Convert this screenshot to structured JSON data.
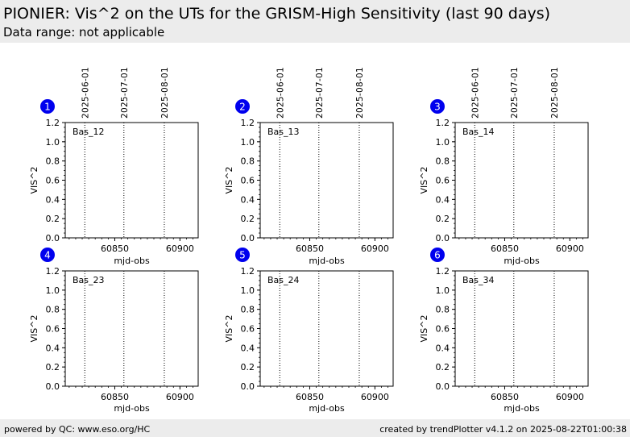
{
  "header": {
    "title": "PIONIER: Vis^2 on the UTs for the GRISM-High Sensitivity (last 90 days)",
    "subtitle": "Data range: not applicable"
  },
  "footer": {
    "left": "powered by QC: www.eso.org/HC",
    "right": "created by trendPlotter v4.1.2 on 2025-08-22T01:00:38"
  },
  "chart_data": [
    {
      "type": "scatter",
      "panel_number": "1",
      "label": "Bas_12",
      "xlabel": "",
      "ylabel": "VIS^2",
      "xlim": [
        60812,
        60914
      ],
      "ylim": [
        0,
        1.2
      ],
      "xticks": [
        60850,
        60900
      ],
      "yticks": [
        "0.0",
        "0.2",
        "0.4",
        "0.6",
        "0.8",
        "1.0",
        "1.2"
      ],
      "date_markers": [
        {
          "mjd": 60827,
          "label": "2025-06-01"
        },
        {
          "mjd": 60857,
          "label": "2025-07-01"
        },
        {
          "mjd": 60888,
          "label": "2025-08-01"
        }
      ],
      "series": []
    },
    {
      "type": "scatter",
      "panel_number": "2",
      "label": "Bas_13",
      "xlabel": "",
      "ylabel": "VIS^2",
      "xlim": [
        60812,
        60914
      ],
      "ylim": [
        0,
        1.2
      ],
      "xticks": [
        60850,
        60900
      ],
      "yticks": [
        "0.0",
        "0.2",
        "0.4",
        "0.6",
        "0.8",
        "1.0",
        "1.2"
      ],
      "date_markers": [
        {
          "mjd": 60827,
          "label": "2025-06-01"
        },
        {
          "mjd": 60857,
          "label": "2025-07-01"
        },
        {
          "mjd": 60888,
          "label": "2025-08-01"
        }
      ],
      "series": []
    },
    {
      "type": "scatter",
      "panel_number": "3",
      "label": "Bas_14",
      "xlabel": "",
      "ylabel": "VIS^2",
      "xlim": [
        60812,
        60914
      ],
      "ylim": [
        0,
        1.2
      ],
      "xticks": [
        60850,
        60900
      ],
      "yticks": [
        "0.0",
        "0.2",
        "0.4",
        "0.6",
        "0.8",
        "1.0",
        "1.2"
      ],
      "date_markers": [
        {
          "mjd": 60827,
          "label": "2025-06-01"
        },
        {
          "mjd": 60857,
          "label": "2025-07-01"
        },
        {
          "mjd": 60888,
          "label": "2025-08-01"
        }
      ],
      "series": []
    },
    {
      "type": "scatter",
      "panel_number": "4",
      "label": "Bas_23",
      "xlabel": "mjd-obs",
      "ylabel": "VIS^2",
      "xlim": [
        60812,
        60914
      ],
      "ylim": [
        0,
        1.2
      ],
      "xticks": [
        60850,
        60900
      ],
      "yticks": [
        "0.0",
        "0.2",
        "0.4",
        "0.6",
        "0.8",
        "1.0",
        "1.2"
      ],
      "date_markers": [
        {
          "mjd": 60827,
          "label": ""
        },
        {
          "mjd": 60857,
          "label": ""
        },
        {
          "mjd": 60888,
          "label": ""
        }
      ],
      "series": []
    },
    {
      "type": "scatter",
      "panel_number": "5",
      "label": "Bas_24",
      "xlabel": "mjd-obs",
      "ylabel": "VIS^2",
      "xlim": [
        60812,
        60914
      ],
      "ylim": [
        0,
        1.2
      ],
      "xticks": [
        60850,
        60900
      ],
      "yticks": [
        "0.0",
        "0.2",
        "0.4",
        "0.6",
        "0.8",
        "1.0",
        "1.2"
      ],
      "date_markers": [
        {
          "mjd": 60827,
          "label": ""
        },
        {
          "mjd": 60857,
          "label": ""
        },
        {
          "mjd": 60888,
          "label": ""
        }
      ],
      "series": []
    },
    {
      "type": "scatter",
      "panel_number": "6",
      "label": "Bas_34",
      "xlabel": "mjd-obs",
      "ylabel": "VIS^2",
      "xlim": [
        60812,
        60914
      ],
      "ylim": [
        0,
        1.2
      ],
      "xticks": [
        60850,
        60900
      ],
      "yticks": [
        "0.0",
        "0.2",
        "0.4",
        "0.6",
        "0.8",
        "1.0",
        "1.2"
      ],
      "date_markers": [
        {
          "mjd": 60827,
          "label": ""
        },
        {
          "mjd": 60857,
          "label": ""
        },
        {
          "mjd": 60888,
          "label": ""
        }
      ],
      "series": []
    }
  ],
  "extra_xlabels": [
    "mjd-obs",
    "mjd-obs",
    "mjd-obs"
  ],
  "colors": {
    "badge": "#0000ee",
    "badge_text": "#ffffff",
    "axis": "#000000",
    "marker_line": "#000000",
    "header_bg": "#ececec"
  }
}
